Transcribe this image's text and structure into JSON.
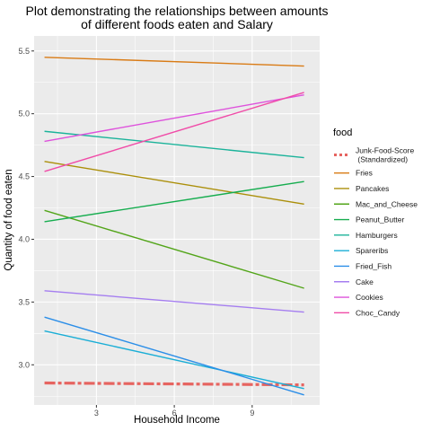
{
  "chart_data": {
    "type": "line",
    "title_lines": [
      "Plot demonstrating the relationships between amounts",
      "of different foods eaten and Salary"
    ],
    "xlabel": "Household Income",
    "ylabel": "Quantity of food eaten",
    "xlim": [
      0.6,
      11.6
    ],
    "ylim": [
      2.68,
      5.62
    ],
    "x_ticks": [
      3,
      6,
      9
    ],
    "y_ticks": [
      3.0,
      3.5,
      4.0,
      4.5,
      5.0,
      5.5
    ],
    "y_tick_labels": [
      "3.0",
      "3.5",
      "4.0",
      "4.5",
      "5.0",
      "5.5"
    ],
    "grid": true,
    "legend": {
      "title": "food",
      "position": "right"
    },
    "series": [
      {
        "name": "Junk-Food-Score\n(Standardized)",
        "name_lines": [
          "Junk-Food-Score",
          "(Standardized)"
        ],
        "color": "#e66460",
        "dash": true,
        "x": [
          1,
          11
        ],
        "y": [
          2.855,
          2.84
        ]
      },
      {
        "name": "Fries",
        "name_lines": [
          "Fries"
        ],
        "color": "#d97b15",
        "x": [
          1,
          11
        ],
        "y": [
          5.45,
          5.38
        ]
      },
      {
        "name": "Pancakes",
        "name_lines": [
          "Pancakes"
        ],
        "color": "#ab8f0a",
        "x": [
          1,
          11
        ],
        "y": [
          4.62,
          4.28
        ]
      },
      {
        "name": "Mac_and_Cheese",
        "name_lines": [
          "Mac_and_Cheese"
        ],
        "color": "#53a51a",
        "x": [
          1,
          11
        ],
        "y": [
          4.23,
          3.61
        ]
      },
      {
        "name": "Peanut_Butter",
        "name_lines": [
          "Peanut_Butter"
        ],
        "color": "#16ad4f",
        "x": [
          1,
          11
        ],
        "y": [
          4.14,
          4.46
        ]
      },
      {
        "name": "Hamburgers",
        "name_lines": [
          "Hamburgers"
        ],
        "color": "#1bb39a",
        "x": [
          1,
          11
        ],
        "y": [
          4.86,
          4.65
        ]
      },
      {
        "name": "Spareribs",
        "name_lines": [
          "Spareribs"
        ],
        "color": "#1aaed6",
        "x": [
          1,
          11
        ],
        "y": [
          3.27,
          2.81
        ]
      },
      {
        "name": "Fried_Fish",
        "name_lines": [
          "Fried_Fish"
        ],
        "color": "#2b8ee8",
        "x": [
          1,
          11
        ],
        "y": [
          3.38,
          2.76
        ]
      },
      {
        "name": "Cake",
        "name_lines": [
          "Cake"
        ],
        "color": "#a57ef0",
        "x": [
          1,
          11
        ],
        "y": [
          3.59,
          3.42
        ]
      },
      {
        "name": "Cookies",
        "name_lines": [
          "Cookies"
        ],
        "color": "#de52dc",
        "x": [
          1,
          11
        ],
        "y": [
          4.78,
          5.15
        ]
      },
      {
        "name": "Choc_Candy",
        "name_lines": [
          "Choc_Candy"
        ],
        "color": "#f04ca8",
        "x": [
          1,
          11
        ],
        "y": [
          4.54,
          5.17
        ]
      }
    ]
  }
}
